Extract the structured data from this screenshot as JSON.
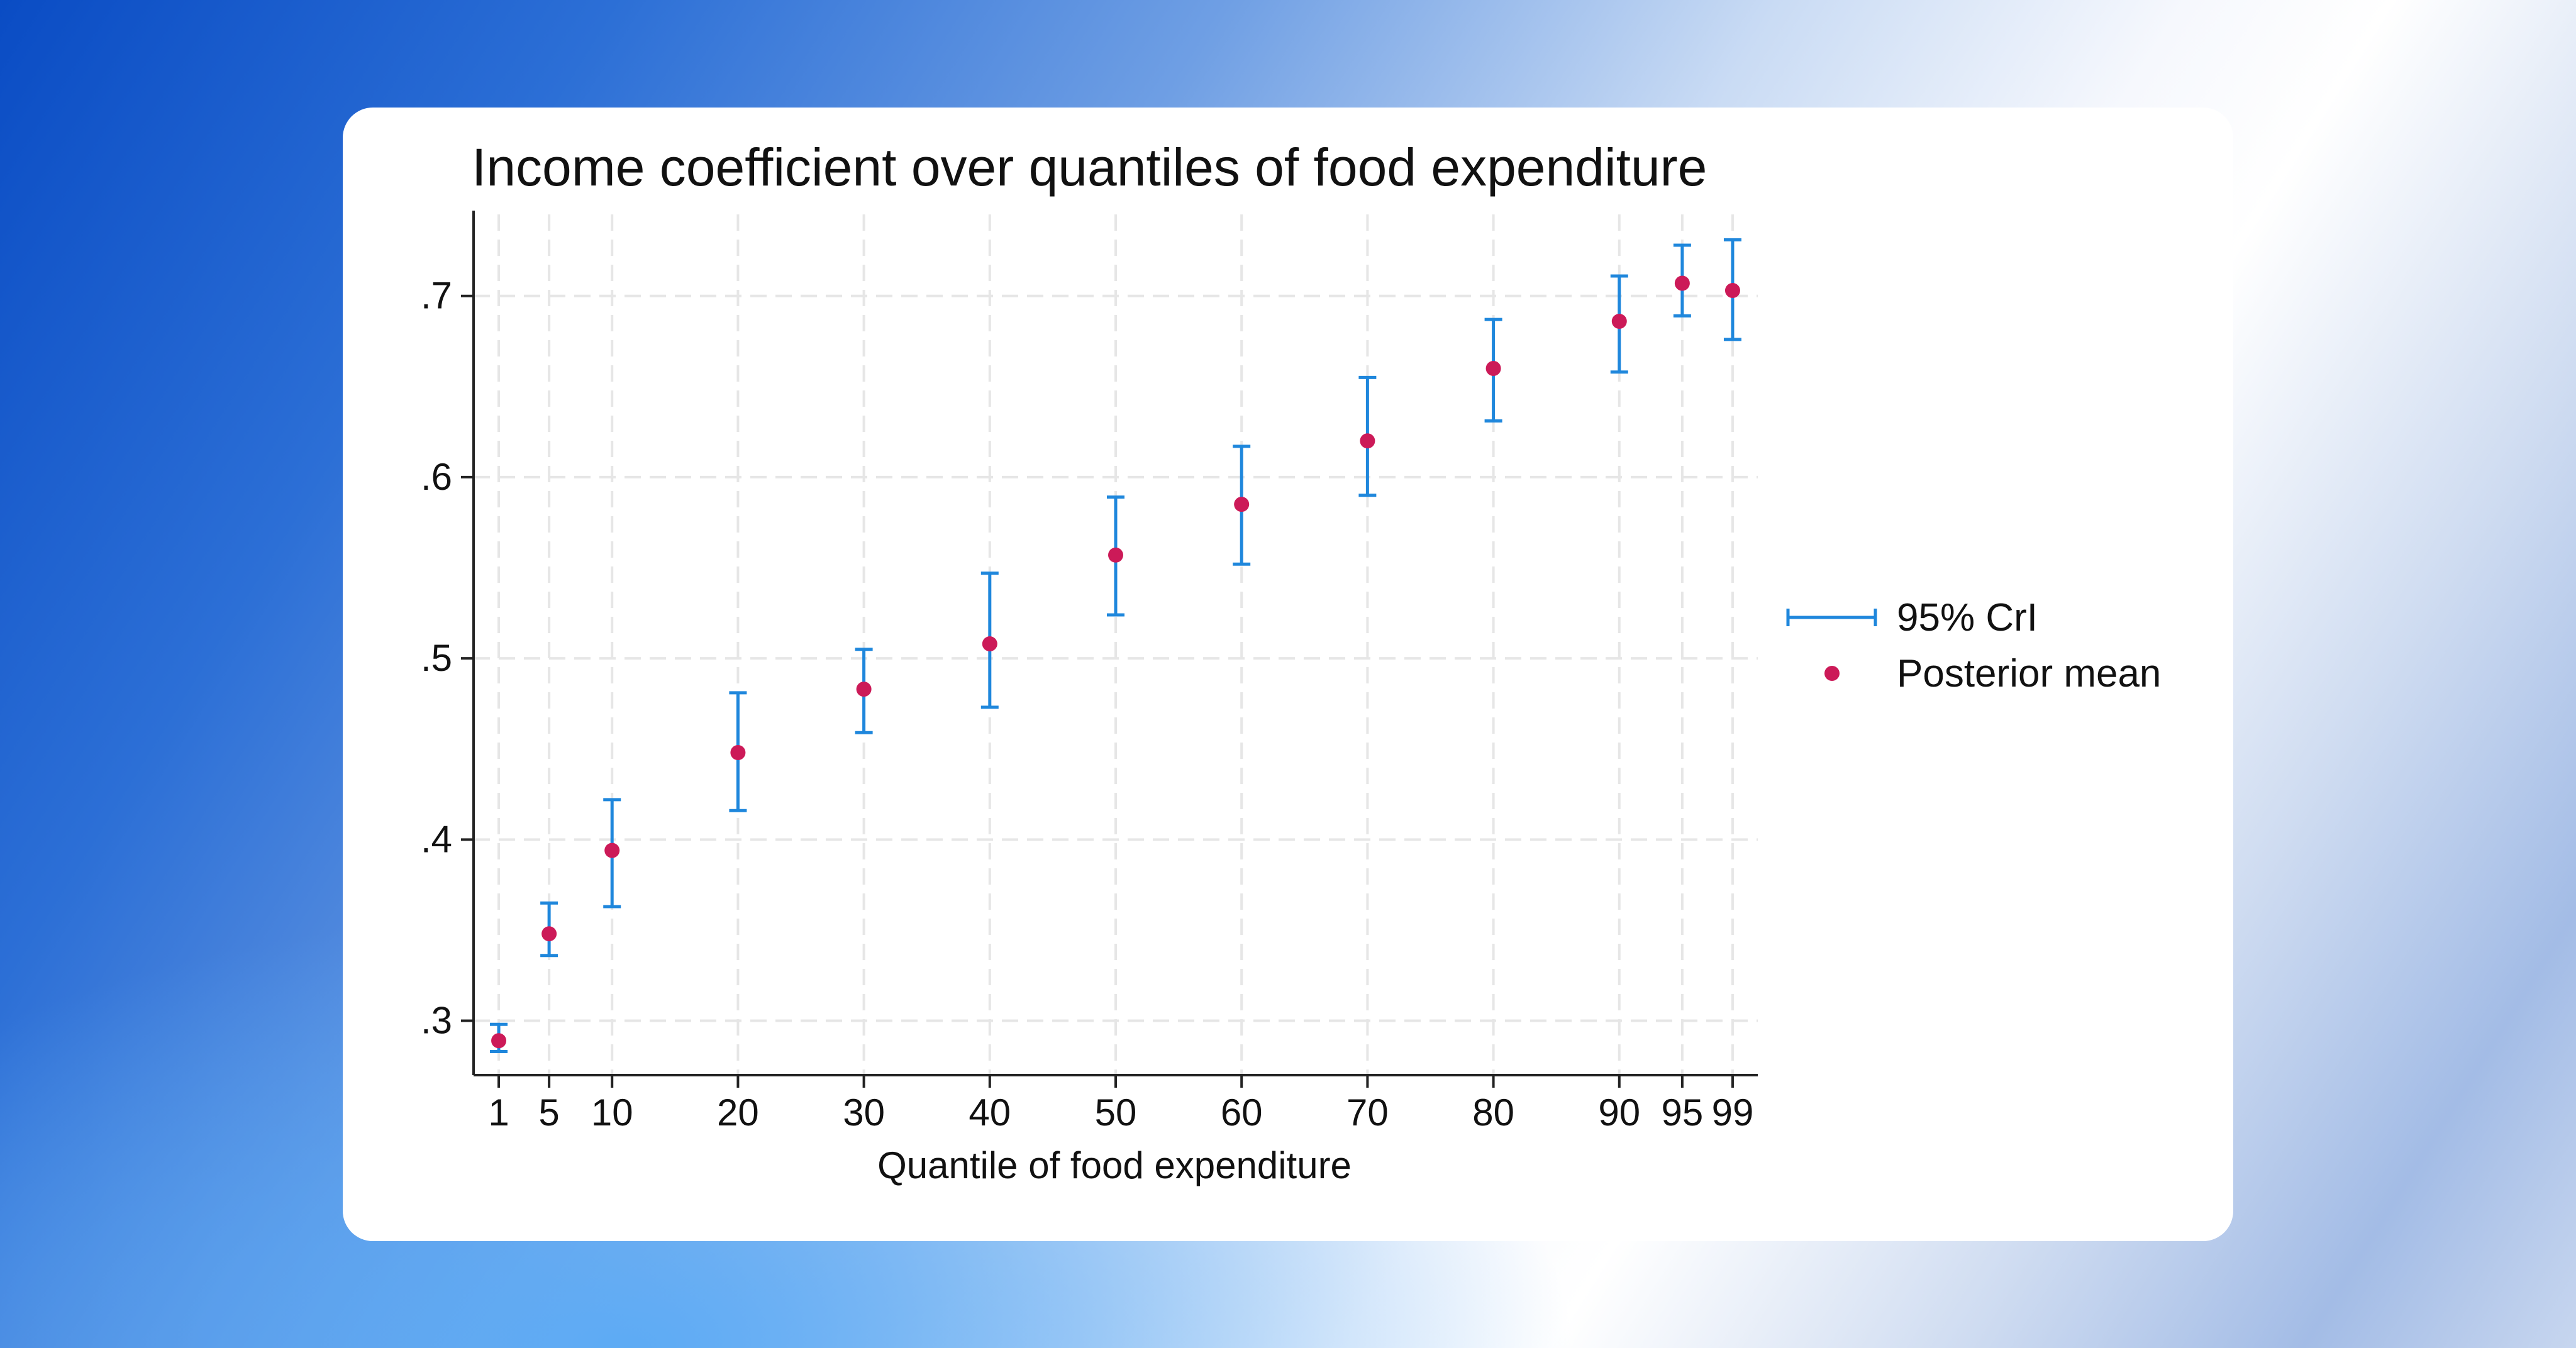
{
  "chart_data": {
    "type": "scatter",
    "title": "Income coefficient over quantiles of food expenditure",
    "xlabel": "Quantile of food expenditure",
    "ylabel": "",
    "x": [
      1,
      5,
      10,
      20,
      30,
      40,
      50,
      60,
      70,
      80,
      90,
      95,
      99
    ],
    "x_tick_labels": [
      "1",
      "5",
      "10",
      "20",
      "30",
      "40",
      "50",
      "60",
      "70",
      "80",
      "90",
      "95",
      "99"
    ],
    "y_ticks": [
      0.3,
      0.4,
      0.5,
      0.6,
      0.7
    ],
    "y_tick_labels": [
      ".3",
      ".4",
      ".5",
      ".6",
      ".7"
    ],
    "ylim": [
      0.27,
      0.745
    ],
    "xlim": [
      -1,
      101
    ],
    "grid": true,
    "legend_position": "right",
    "series": [
      {
        "name": "Posterior mean",
        "mark": "point",
        "color": "#cc1a58",
        "values": [
          0.289,
          0.348,
          0.394,
          0.448,
          0.483,
          0.508,
          0.557,
          0.585,
          0.62,
          0.66,
          0.686,
          0.707,
          0.703
        ]
      },
      {
        "name": "95% CrI",
        "mark": "errorbar",
        "color": "#1f87dc",
        "lower": [
          0.283,
          0.336,
          0.363,
          0.416,
          0.459,
          0.473,
          0.524,
          0.552,
          0.59,
          0.631,
          0.658,
          0.689,
          0.676
        ],
        "upper": [
          0.298,
          0.365,
          0.422,
          0.481,
          0.505,
          0.547,
          0.589,
          0.617,
          0.655,
          0.687,
          0.711,
          0.728,
          0.731
        ]
      }
    ],
    "legend": [
      "95% CrI",
      "Posterior mean"
    ]
  }
}
